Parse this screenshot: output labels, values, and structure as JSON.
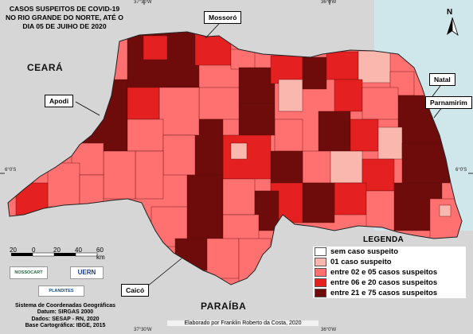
{
  "title": "CASOS SUSPEITOS DE COVID-19 NO RIO GRANDE DO NORTE, ATÉ O DIA 05 DE JUIHO DE 2020",
  "colors": {
    "sea": "#cfe6ea",
    "outside": "#d6d6d6",
    "class_none": "#ffffff",
    "class_1": "#f9b7ae",
    "class_2_5": "#ff7070",
    "class_6_20": "#e42020",
    "class_21_75": "#6e0c0c"
  },
  "cities": {
    "mossoro": "Mossoró",
    "apodi": "Apodi",
    "natal": "Natal",
    "parnamirim": "Parnamirim",
    "caico": "Caicó"
  },
  "regions": {
    "ceara": "CEARÁ",
    "paraiba": "PARAÍBA"
  },
  "coordinates": {
    "top_left": "37°30'W",
    "top_right": "36°0'W",
    "left_lat": "6°0'S",
    "right_lat": "6°0'S",
    "bottom_left": "37°30'W",
    "bottom_right": "36°0'W"
  },
  "legend": {
    "title": "LEGENDA",
    "items": [
      {
        "label": "sem caso suspeito",
        "color": "#ffffff"
      },
      {
        "label": "01 caso suspeito",
        "color": "#f9b7ae"
      },
      {
        "label": "entre 02 e 05 casos suspeitos",
        "color": "#ff7070"
      },
      {
        "label": "entre 06 e 20 casos suspeitos",
        "color": "#e42020"
      },
      {
        "label": "entre 21 e 75 casos suspeitos",
        "color": "#6e0c0c"
      }
    ]
  },
  "scale": {
    "labels": [
      "20",
      "0",
      "20",
      "40",
      "60 km"
    ]
  },
  "logos": {
    "nossocart": "NOSSOCART",
    "uern": "UERN",
    "plandites": "PLANDITES"
  },
  "info": {
    "line1": "Sistema de Coordenadas Geográficas",
    "line2": "Datum: SIRGAS 2000",
    "line3": "Dados: SESAP - RN, 2020",
    "line4": "Base Cartográfica: IBGE, 2015"
  },
  "credit": "Elaborado por Franklin Roberto da Costa, 2020",
  "north": "N"
}
